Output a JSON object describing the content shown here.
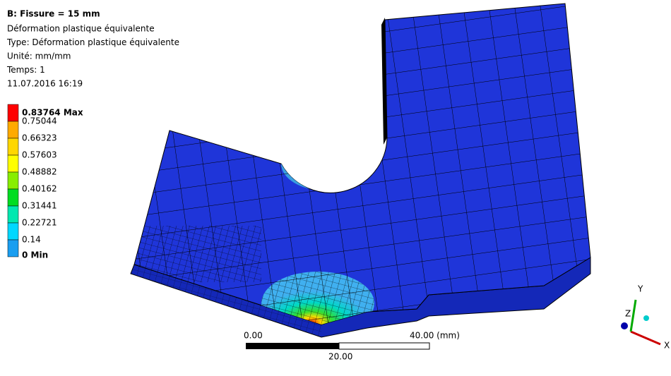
{
  "header": {
    "title": "B: Fissure = 15 mm",
    "lines": [
      "Déformation plastique équivalente",
      "Type: Déformation plastique équivalente",
      "Unité: mm/mm",
      "Temps: 1",
      "11.07.2016 16:19"
    ]
  },
  "legend": {
    "labels": [
      "0.83764 Max",
      "0.75044",
      "0.66323",
      "0.57603",
      "0.48882",
      "0.40162",
      "0.31441",
      "0.22721",
      "0.14",
      "0 Min"
    ],
    "colors": [
      "#ff0000",
      "#ffaa00",
      "#ffd700",
      "#ffff00",
      "#88ee00",
      "#00dd22",
      "#00e8b0",
      "#00d8ff",
      "#1a9ef0",
      "#0000ff"
    ]
  },
  "scale_bar": {
    "left": "0.00",
    "right": "40.00 (mm)",
    "middle": "20.00"
  },
  "triad": {
    "y": "Y",
    "x": "X",
    "z": "Z"
  }
}
